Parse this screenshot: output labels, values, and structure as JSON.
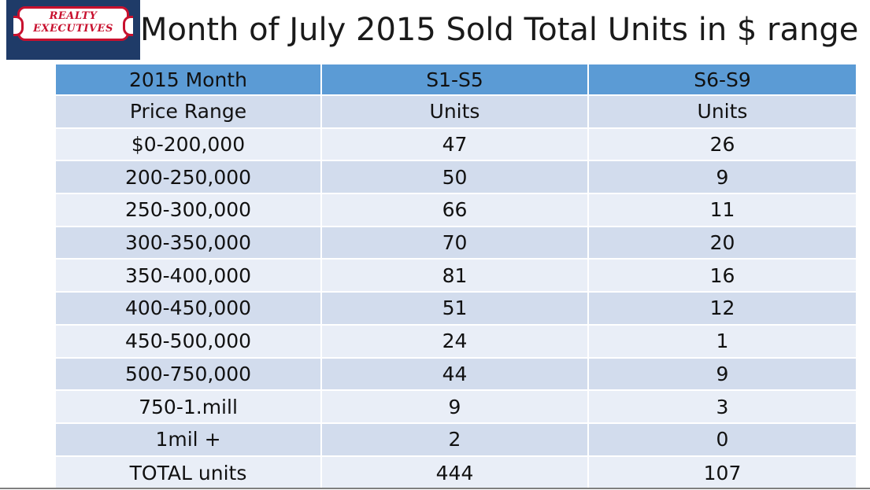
{
  "logo": {
    "line1": "REALTY",
    "line2": "EXECUTIVES"
  },
  "title": "Month of July 2015 Sold Total Units in $ range",
  "table": {
    "header": [
      "2015 Month",
      "S1-S5",
      "S6-S9"
    ],
    "rows": [
      [
        "Price Range",
        "Units",
        "Units"
      ],
      [
        "$0-200,000",
        "47",
        "26"
      ],
      [
        "200-250,000",
        "50",
        "9"
      ],
      [
        "250-300,000",
        "66",
        "11"
      ],
      [
        "300-350,000",
        "70",
        "20"
      ],
      [
        "350-400,000",
        "81",
        "16"
      ],
      [
        "400-450,000",
        "51",
        "12"
      ],
      [
        "450-500,000",
        "24",
        "1"
      ],
      [
        "500-750,000",
        "44",
        "9"
      ],
      [
        "750-1.mill",
        "9",
        "3"
      ],
      [
        "1mil +",
        "2",
        "0"
      ],
      [
        "TOTAL units",
        "444",
        "107"
      ]
    ]
  },
  "colors": {
    "header_bg": "#5b9bd5",
    "row_dark": "#d2dced",
    "row_light": "#e9eef7",
    "logo_bg": "#1f3b68",
    "logo_red": "#c8102e"
  }
}
